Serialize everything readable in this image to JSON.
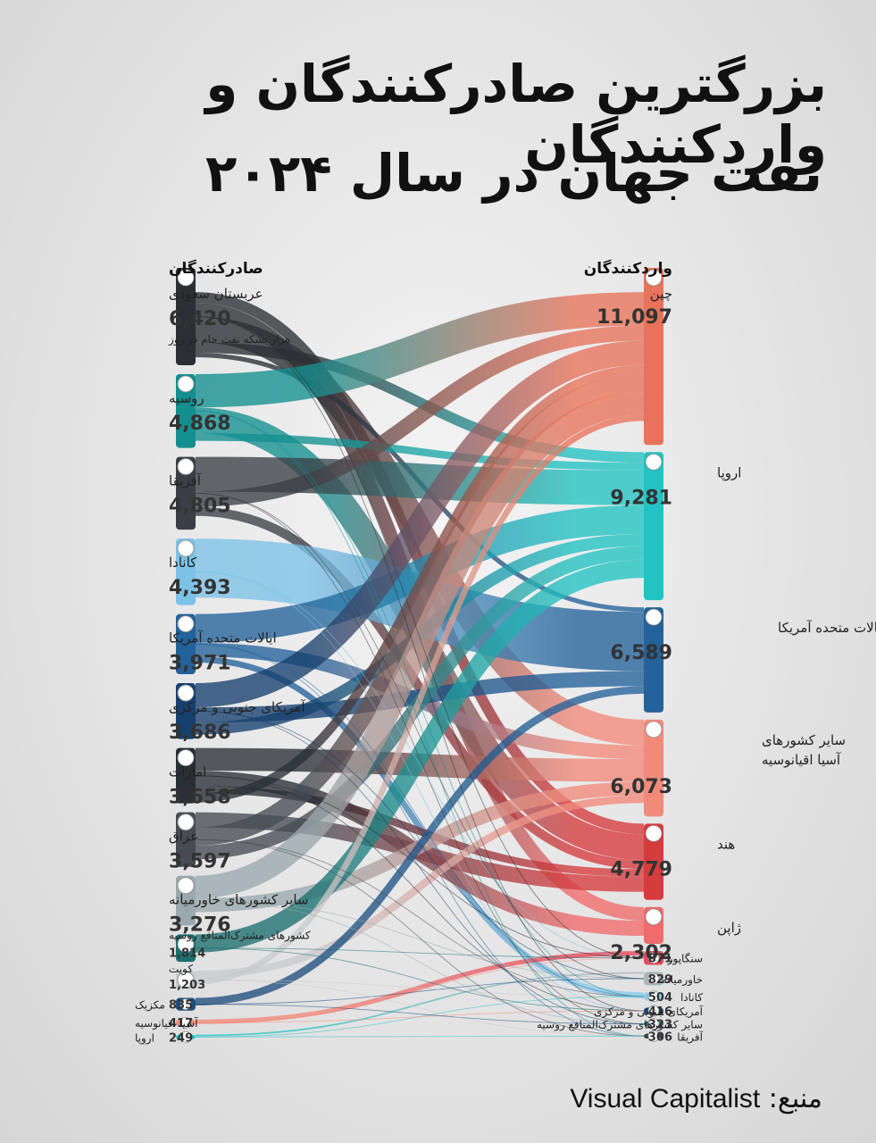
{
  "title_line1": "بزرگترین صادرکنندگان و واردکنندگان",
  "title_line2": "نفت جهان در سال ۲۰۲۴",
  "source_label": "منبع:",
  "source_name": "Visual Capitalist",
  "chart_data": {
    "type": "sankey",
    "unit": "هزار بشکه نفت خام در روز",
    "exporters_heading": "صادرکنندگان",
    "importers_heading": "واردکنندگان",
    "exporters": [
      {
        "name": "عربستان سعودی",
        "value": 6420,
        "label": "6,420",
        "color": "#2b2e33",
        "icon": "saudi-flag-icon"
      },
      {
        "name": "روسیه",
        "value": 4868,
        "label": "4,868",
        "color": "#138f8f",
        "icon": "russia-flag-icon"
      },
      {
        "name": "آفریقا",
        "value": 4805,
        "label": "4,805",
        "color": "#3b3f45",
        "icon": "africa-globe-icon"
      },
      {
        "name": "کانادا",
        "value": 4393,
        "label": "4,393",
        "color": "#7cc2e6",
        "icon": "canada-flag-icon"
      },
      {
        "name": "ایالات متحده آمریکا",
        "value": 3971,
        "label": "3,971",
        "color": "#23629a",
        "icon": "usa-flag-icon"
      },
      {
        "name": "آمریکای جنوبی و مرکزی",
        "value": 3686,
        "label": "3,686",
        "color": "#16406e",
        "icon": "south-america-globe-icon"
      },
      {
        "name": "امارات",
        "value": 3658,
        "label": "3,658",
        "color": "#2a2f36",
        "icon": "uae-flag-icon"
      },
      {
        "name": "عراق",
        "value": 3597,
        "label": "3,597",
        "color": "#474c53",
        "icon": "iraq-flag-icon"
      },
      {
        "name": "سایر کشورهای خاورمیانه",
        "value": 3276,
        "label": "3,276",
        "color": "#9aa9ad",
        "icon": "middle-east-globe-icon"
      },
      {
        "name": "کشورهای مشترک‌المنافع روسیه",
        "value": 1814,
        "label": "1,814",
        "color": "#1c6f6f",
        "icon": "cis-emblem-icon"
      },
      {
        "name": "کویت",
        "value": 1203,
        "label": "1,203",
        "color": "#c8cbcd",
        "icon": "kuwait-flag-icon"
      },
      {
        "name": "مکزیک",
        "value": 835,
        "label": "835",
        "color": "#1f4f7e",
        "icon": "mexico-flag-icon"
      },
      {
        "name": "آسیا اقیانوسیه",
        "value": 417,
        "label": "417",
        "color": "#f28a7a",
        "icon": "asia-pacific-globe-icon"
      },
      {
        "name": "اروپا",
        "value": 249,
        "label": "249",
        "color": "#26c3c3",
        "icon": "eu-flag-icon"
      }
    ],
    "importers": [
      {
        "name": "چین",
        "value": 11097,
        "label": "11,097",
        "color": "#e8735a",
        "icon": "china-flag-icon"
      },
      {
        "name": "اروپا",
        "value": 9281,
        "label": "9,281",
        "color": "#22c3c3",
        "icon": "eu-flag-icon"
      },
      {
        "name": "ایالات متحده آمریکا",
        "value": 6589,
        "label": "6,589",
        "color": "#23629a",
        "icon": "usa-flag-icon"
      },
      {
        "name": "سایر کشورهای آسیا اقیانوسیه",
        "name_lines": [
          "سایر کشورهای",
          "آسیا اقیانوسیه"
        ],
        "value": 6073,
        "label": "6,073",
        "color": "#f28a7a",
        "icon": "asia-pacific-globe-icon"
      },
      {
        "name": "هند",
        "value": 4779,
        "label": "4,779",
        "color": "#d63b3d",
        "icon": "india-flag-icon"
      },
      {
        "name": "ژاپن",
        "value": 2302,
        "label": "2,302",
        "color": "#f06b6b",
        "icon": "japan-flag-icon"
      },
      {
        "name": "سنگاپور",
        "value": 871,
        "label": "871",
        "color": "#e8475a",
        "icon": "singapore-flag-icon"
      },
      {
        "name": "خاورمیانه",
        "value": 829,
        "label": "829",
        "color": "#a9b5b9",
        "icon": "middle-east-globe-icon"
      },
      {
        "name": "کانادا",
        "value": 504,
        "label": "504",
        "color": "#8ccbe9",
        "icon": "canada-flag-icon"
      },
      {
        "name": "آمریکای جنوبی و مرکزی",
        "value": 416,
        "label": "416",
        "color": "#16406e",
        "icon": "south-america-globe-icon"
      },
      {
        "name": "سایر کشورهای مشترک‌المنافع روسیه",
        "value": 323,
        "label": "323",
        "color": "#1c6f6f",
        "icon": "cis-emblem-icon"
      },
      {
        "name": "آفریقا",
        "value": 306,
        "label": "306",
        "color": "#3b3f45",
        "icon": "africa-globe-icon"
      }
    ],
    "flows": [
      {
        "from": "عربستان سعودی",
        "to": "چین",
        "value": 1600
      },
      {
        "from": "عربستان سعودی",
        "to": "هند",
        "value": 700
      },
      {
        "from": "عربستان سعودی",
        "to": "ژاپن",
        "value": 900
      },
      {
        "from": "عربستان سعودی",
        "to": "سایر کشورهای آسیا اقیانوسیه",
        "value": 1700
      },
      {
        "from": "عربستان سعودی",
        "to": "اروپا",
        "value": 700
      },
      {
        "from": "عربستان سعودی",
        "to": "ایالات متحده آمریکا",
        "value": 300
      },
      {
        "from": "روسیه",
        "to": "چین",
        "value": 2200
      },
      {
        "from": "روسیه",
        "to": "هند",
        "value": 1700
      },
      {
        "from": "روسیه",
        "to": "اروپا",
        "value": 500
      },
      {
        "from": "آفریقا",
        "to": "اروپا",
        "value": 2300
      },
      {
        "from": "آفریقا",
        "to": "چین",
        "value": 1000
      },
      {
        "from": "آفریقا",
        "to": "هند",
        "value": 600
      },
      {
        "from": "کانادا",
        "to": "ایالات متحده آمریکا",
        "value": 3900
      },
      {
        "from": "ایالات متحده آمریکا",
        "to": "اروپا",
        "value": 1900
      },
      {
        "from": "ایالات متحده آمریکا",
        "to": "سایر کشورهای آسیا اقیانوسیه",
        "value": 900
      },
      {
        "from": "ایالات متحده آمریکا",
        "to": "کانادا",
        "value": 400
      },
      {
        "from": "آمریکای جنوبی و مرکزی",
        "to": "چین",
        "value": 1600
      },
      {
        "from": "آمریکای جنوبی و مرکزی",
        "to": "ایالات متحده آمریکا",
        "value": 1000
      },
      {
        "from": "آمریکای جنوبی و مرکزی",
        "to": "اروپا",
        "value": 800
      },
      {
        "from": "امارات",
        "to": "سایر کشورهای آسیا اقیانوسیه",
        "value": 1500
      },
      {
        "from": "امارات",
        "to": "ژاپن",
        "value": 1000
      },
      {
        "from": "امارات",
        "to": "هند",
        "value": 500
      },
      {
        "from": "امارات",
        "to": "چین",
        "value": 600
      },
      {
        "from": "عراق",
        "to": "هند",
        "value": 1000
      },
      {
        "from": "عراق",
        "to": "چین",
        "value": 1200
      },
      {
        "from": "عراق",
        "to": "اروپا",
        "value": 900
      },
      {
        "from": "سایر کشورهای خاورمیانه",
        "to": "چین",
        "value": 1500
      },
      {
        "from": "سایر کشورهای خاورمیانه",
        "to": "سایر کشورهای آسیا اقیانوسیه",
        "value": 900
      },
      {
        "from": "کشورهای مشترک‌المنافع روسیه",
        "to": "اروپا",
        "value": 1200
      },
      {
        "from": "کویت",
        "to": "سایر کشورهای آسیا اقیانوسیه",
        "value": 500
      },
      {
        "from": "کویت",
        "to": "چین",
        "value": 400
      },
      {
        "from": "مکزیک",
        "to": "ایالات متحده آمریکا",
        "value": 500
      },
      {
        "from": "آسیا اقیانوسیه",
        "to": "سنگاپور",
        "value": 300
      },
      {
        "from": "اروپا",
        "to": "خاورمیانه",
        "value": 100
      }
    ]
  }
}
